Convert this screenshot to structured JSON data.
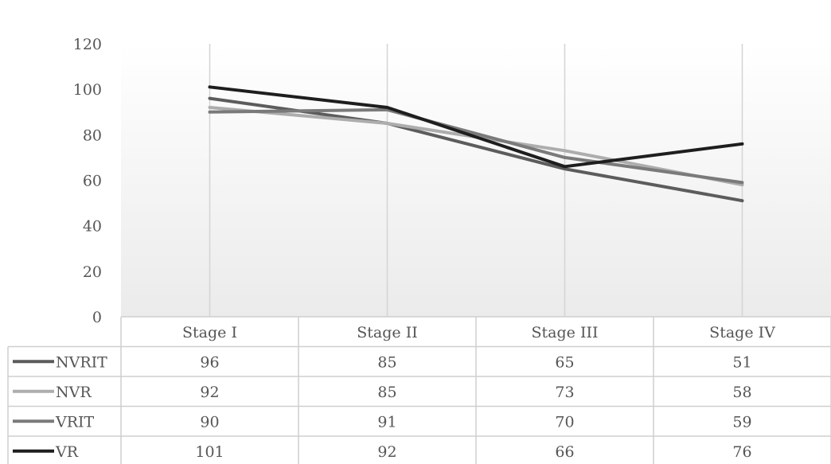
{
  "chart_data": {
    "type": "line",
    "categories": [
      "Stage I",
      "Stage II",
      "Stage III",
      "Stage IV"
    ],
    "series": [
      {
        "name": "NVRIT",
        "values": [
          96,
          85,
          65,
          51
        ],
        "color": "#5c5c5c"
      },
      {
        "name": "NVR",
        "values": [
          92,
          85,
          73,
          58
        ],
        "color": "#adadad"
      },
      {
        "name": "VRIT",
        "values": [
          90,
          91,
          70,
          59
        ],
        "color": "#7a7a7a"
      },
      {
        "name": "VR",
        "values": [
          101,
          92,
          66,
          76
        ],
        "color": "#1e1e1e"
      }
    ],
    "ylim": [
      0,
      120
    ],
    "yticks": [
      0,
      20,
      40,
      60,
      80,
      100,
      120
    ],
    "title": "",
    "xlabel": "",
    "ylabel": "",
    "grid": "vertical",
    "legend": "data-table",
    "data_table": true
  }
}
